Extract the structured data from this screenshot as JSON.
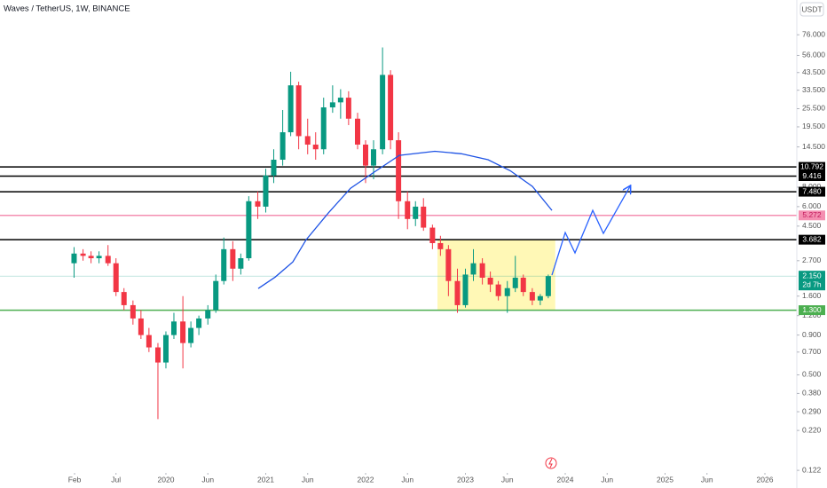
{
  "chart_data": {
    "type": "candlestick",
    "title": "Waves / TetherUS, 1W, BINANCE",
    "currency": "USDT",
    "log_scale": true,
    "xlim": [
      2018.338,
      2026.32
    ],
    "ylim": [
      0.119,
      127
    ],
    "up_color": "#089981",
    "down_color": "#f23645",
    "xticks": [
      {
        "value": 2019.085,
        "label": "Feb"
      },
      {
        "value": 2019.5,
        "label": "Jul"
      },
      2020,
      {
        "value": 2020.42,
        "label": "Jun"
      },
      2021,
      {
        "value": 2021.42,
        "label": "Jun"
      },
      2022,
      {
        "value": 2022.42,
        "label": "Jun"
      },
      2023,
      {
        "value": 2023.42,
        "label": "Jun"
      },
      2024,
      {
        "value": 2024.42,
        "label": "Jun"
      },
      2025,
      {
        "value": 2025.42,
        "label": "Jun"
      },
      2026
    ],
    "yticks": [
      {
        "value": 76,
        "label": "76.000"
      },
      {
        "value": 56,
        "label": "56.000"
      },
      {
        "value": 43.5,
        "label": "43.500"
      },
      {
        "value": 33.5,
        "label": "33.500"
      },
      {
        "value": 25.5,
        "label": "25.500"
      },
      {
        "value": 19.5,
        "label": "19.500"
      },
      {
        "value": 14.5,
        "label": "14.500"
      },
      {
        "value": 8,
        "label": "8.000"
      },
      {
        "value": 6,
        "label": "6.000"
      },
      {
        "value": 4.5,
        "label": "4.500"
      },
      {
        "value": 2.7,
        "label": "2.700"
      },
      {
        "value": 1.6,
        "label": "1.600"
      },
      {
        "value": 1.2,
        "label": "1.200"
      },
      {
        "value": 0.9,
        "label": "0.900"
      },
      {
        "value": 0.7,
        "label": "0.700"
      },
      {
        "value": 0.5,
        "label": "0.500"
      },
      {
        "value": 0.38,
        "label": "0.380"
      },
      {
        "value": 0.29,
        "label": "0.290"
      },
      {
        "value": 0.22,
        "label": "0.220"
      },
      {
        "value": 0.122,
        "label": "0.122"
      }
    ],
    "x": [
      2019.08,
      2019.17,
      2019.25,
      2019.33,
      2019.42,
      2019.5,
      2019.58,
      2019.67,
      2019.75,
      2019.83,
      2019.92,
      2020.0,
      2020.08,
      2020.17,
      2020.25,
      2020.33,
      2020.42,
      2020.5,
      2020.58,
      2020.67,
      2020.75,
      2020.83,
      2020.92,
      2021.0,
      2021.08,
      2021.17,
      2021.25,
      2021.33,
      2021.42,
      2021.5,
      2021.58,
      2021.67,
      2021.75,
      2021.83,
      2021.92,
      2022.0,
      2022.08,
      2022.17,
      2022.25,
      2022.33,
      2022.42,
      2022.5,
      2022.58,
      2022.67,
      2022.75,
      2022.83,
      2022.92,
      2023.0,
      2023.08,
      2023.17,
      2023.25,
      2023.33,
      2023.42,
      2023.5,
      2023.58,
      2023.67,
      2023.75,
      2023.83
    ],
    "open": [
      2.6,
      3.0,
      2.9,
      2.8,
      2.9,
      2.6,
      1.7,
      1.4,
      1.15,
      0.9,
      0.75,
      0.6,
      0.9,
      1.1,
      0.8,
      1.0,
      1.15,
      1.3,
      2.0,
      3.2,
      2.4,
      2.8,
      6.5,
      6.0,
      9.5,
      12,
      18,
      36,
      17,
      15,
      14,
      26,
      28,
      30,
      22,
      15,
      11,
      14,
      42,
      16,
      6.5,
      5.0,
      6.0,
      4.4,
      3.5,
      3.2,
      2.0,
      1.4,
      2.2,
      2.6,
      2.1,
      1.9,
      1.6,
      1.8,
      2.1,
      1.7,
      1.5,
      1.6
    ],
    "high": [
      3.3,
      3.2,
      3.1,
      3.1,
      3.4,
      2.8,
      1.8,
      1.5,
      1.3,
      1.0,
      0.8,
      0.95,
      1.25,
      1.6,
      1.1,
      1.2,
      1.4,
      2.2,
      3.8,
      3.6,
      3.0,
      7.0,
      7.5,
      10.5,
      14,
      25,
      44,
      38,
      22,
      18,
      30,
      36,
      34,
      33,
      24,
      16,
      16,
      63,
      45,
      18,
      7.5,
      6.5,
      6.8,
      4.6,
      3.9,
      3.4,
      2.4,
      2.4,
      3.2,
      2.8,
      2.3,
      2.0,
      2.0,
      2.9,
      2.2,
      1.8,
      1.65,
      2.2
    ],
    "low": [
      2.1,
      2.7,
      2.6,
      2.6,
      2.5,
      1.6,
      1.3,
      1.05,
      0.85,
      0.7,
      0.26,
      0.55,
      0.85,
      0.55,
      0.75,
      0.9,
      1.05,
      1.25,
      1.9,
      2.0,
      2.2,
      2.7,
      5.0,
      5.5,
      8.5,
      11,
      17,
      14,
      13,
      12,
      13,
      24,
      22,
      20,
      14,
      8.5,
      9,
      13,
      14,
      5.0,
      4.3,
      4.5,
      4.2,
      3.2,
      2.9,
      1.6,
      1.25,
      1.35,
      2.0,
      1.9,
      1.7,
      1.5,
      1.25,
      1.7,
      1.6,
      1.4,
      1.4,
      1.55
    ],
    "close": [
      3.0,
      2.9,
      2.8,
      2.9,
      2.6,
      1.7,
      1.4,
      1.15,
      0.9,
      0.75,
      0.6,
      0.9,
      1.1,
      0.8,
      1.0,
      1.15,
      1.3,
      2.0,
      3.2,
      2.4,
      2.8,
      6.5,
      6.0,
      9.5,
      12,
      18,
      36,
      17,
      15,
      14,
      26,
      28,
      30,
      22,
      15,
      11,
      14,
      42,
      16,
      6.5,
      5.0,
      6.0,
      4.4,
      3.5,
      3.2,
      2.0,
      1.4,
      2.2,
      2.6,
      2.1,
      1.9,
      1.6,
      1.8,
      2.1,
      1.7,
      1.5,
      1.6,
      2.15
    ],
    "levels": [
      {
        "value": 10.792,
        "label": "10.792",
        "color": "#000000"
      },
      {
        "value": 9.416,
        "label": "9.416",
        "color": "#000000"
      },
      {
        "value": 7.48,
        "label": "7.480",
        "color": "#000000"
      },
      {
        "value": 5.272,
        "label": "5.272",
        "color": "#f48fb1"
      },
      {
        "value": 3.682,
        "label": "3.682",
        "color": "#000000"
      },
      {
        "value": 1.3,
        "label": "1.300",
        "color": "#4caf50"
      }
    ],
    "last_price": {
      "value": 2.15,
      "label": "2.150",
      "countdown": "2d 7h",
      "color": "#089981"
    },
    "box": {
      "x": [
        2022.72,
        2023.9
      ],
      "y": [
        1.3,
        3.7
      ],
      "color": "#fff59d"
    },
    "drawings": [
      {
        "color": "#1e53e5",
        "x": [
          2020.925,
          2021.094,
          2021.271,
          2021.405,
          2021.627,
          2021.849,
          2022.071,
          2022.338,
          2022.693,
          2022.96,
          2023.227,
          2023.449,
          2023.671,
          2023.867
        ],
        "values": [
          1.79,
          2.12,
          2.65,
          3.68,
          5.46,
          7.87,
          9.84,
          12.8,
          13.6,
          13.1,
          12.0,
          10.2,
          8.09,
          5.68
        ]
      },
      {
        "color": "#2962ff",
        "arrow": true,
        "x": [
          2023.867,
          2024.0,
          2024.098,
          2024.276,
          2024.382,
          2024.649
        ],
        "values": [
          2.18,
          4.09,
          3.03,
          5.68,
          4.04,
          8.09
        ]
      }
    ]
  }
}
